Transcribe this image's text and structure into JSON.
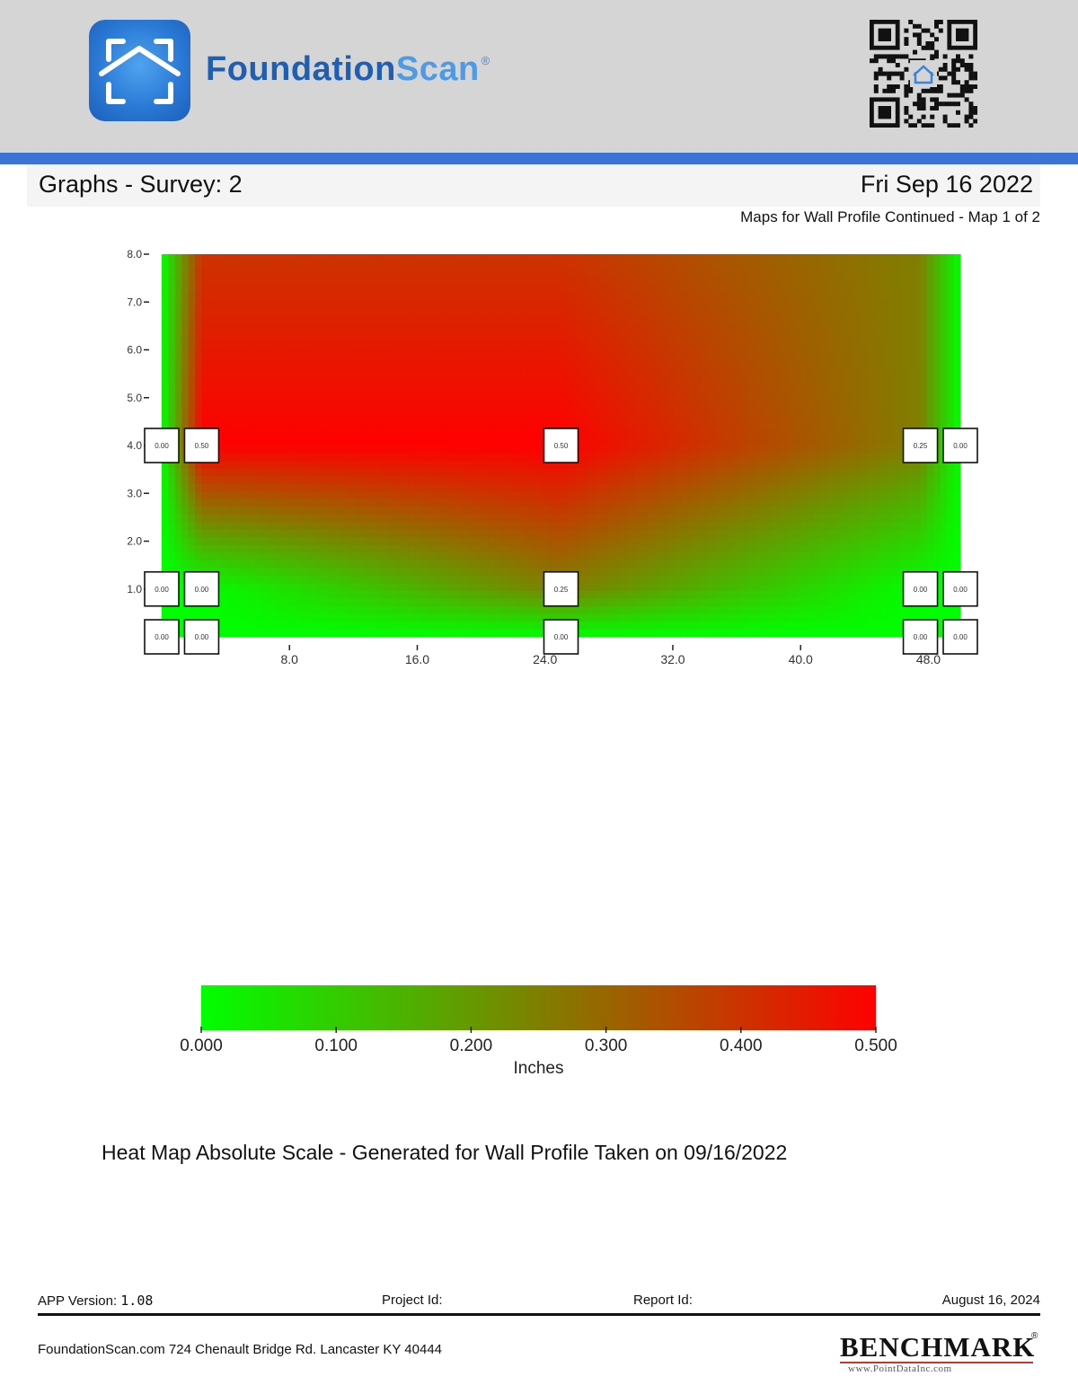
{
  "header": {
    "brand_part1": "Foundation",
    "brand_part2": "Scan",
    "registered_mark": "®",
    "logo_icon": "house-frame-icon",
    "qr_icon": "qr-code-icon"
  },
  "page": {
    "title": "Graphs - Survey: 2",
    "date": "Fri Sep 16 2022",
    "subtitle": "Maps for Wall Profile Continued - Map 1 of 2"
  },
  "chart_data": {
    "type": "heatmap",
    "title": "",
    "xlabel": "",
    "ylabel": "",
    "xlim": [
      0,
      50
    ],
    "ylim": [
      0,
      8
    ],
    "x_ticks": [
      "8.0",
      "16.0",
      "24.0",
      "32.0",
      "40.0",
      "48.0"
    ],
    "y_ticks": [
      "1.0",
      "2.0",
      "3.0",
      "4.0",
      "5.0",
      "6.0",
      "7.0",
      "8.0"
    ],
    "grid": false,
    "colorscale": {
      "low": "#00ff00",
      "mid": "#7f7f00",
      "high": "#ff0000"
    },
    "x_columns": [
      0,
      2.5,
      25,
      47.5,
      50
    ],
    "y_rows": [
      0,
      1,
      4,
      8
    ],
    "z": [
      [
        0,
        0,
        0,
        0,
        0
      ],
      [
        0,
        0,
        0.25,
        0,
        0
      ],
      [
        0,
        0.5,
        0.5,
        0.25,
        0
      ],
      [
        0,
        0.4,
        0.4,
        0.25,
        0
      ]
    ],
    "points": [
      {
        "x": 0,
        "y": 4,
        "label": "0.00"
      },
      {
        "x": 2.5,
        "y": 4,
        "label": "0.50"
      },
      {
        "x": 25,
        "y": 4,
        "label": "0.50"
      },
      {
        "x": 47.5,
        "y": 4,
        "label": "0.25"
      },
      {
        "x": 50,
        "y": 4,
        "label": "0.00"
      },
      {
        "x": 0,
        "y": 1,
        "label": "0.00"
      },
      {
        "x": 2.5,
        "y": 1,
        "label": "0.00"
      },
      {
        "x": 25,
        "y": 1,
        "label": "0.25"
      },
      {
        "x": 47.5,
        "y": 1,
        "label": "0.00"
      },
      {
        "x": 50,
        "y": 1,
        "label": "0.00"
      },
      {
        "x": 0,
        "y": 0,
        "label": "0.00"
      },
      {
        "x": 2.5,
        "y": 0,
        "label": "0.00"
      },
      {
        "x": 25,
        "y": 0,
        "label": "0.00"
      },
      {
        "x": 47.5,
        "y": 0,
        "label": "0.00"
      },
      {
        "x": 50,
        "y": 0,
        "label": "0.00"
      }
    ],
    "colorbar": {
      "range": [
        0,
        0.5
      ],
      "ticks": [
        "0.000",
        "0.100",
        "0.200",
        "0.300",
        "0.400",
        "0.500"
      ],
      "label": "Inches"
    }
  },
  "caption": "Heat Map Absolute Scale - Generated for Wall Profile Taken on 09/16/2022",
  "footer": {
    "app_version_label": "APP Version: ",
    "app_version": "1.08",
    "project_id_label": "Project Id:",
    "report_id_label": "Report Id:",
    "report_date": "August 16, 2024",
    "address": "FoundationScan.com 724 Chenault Bridge Rd. Lancaster KY 40444",
    "partner_name": "BENCHMARK",
    "partner_url": "www.PointDataInc.com",
    "partner_mark": "®"
  }
}
